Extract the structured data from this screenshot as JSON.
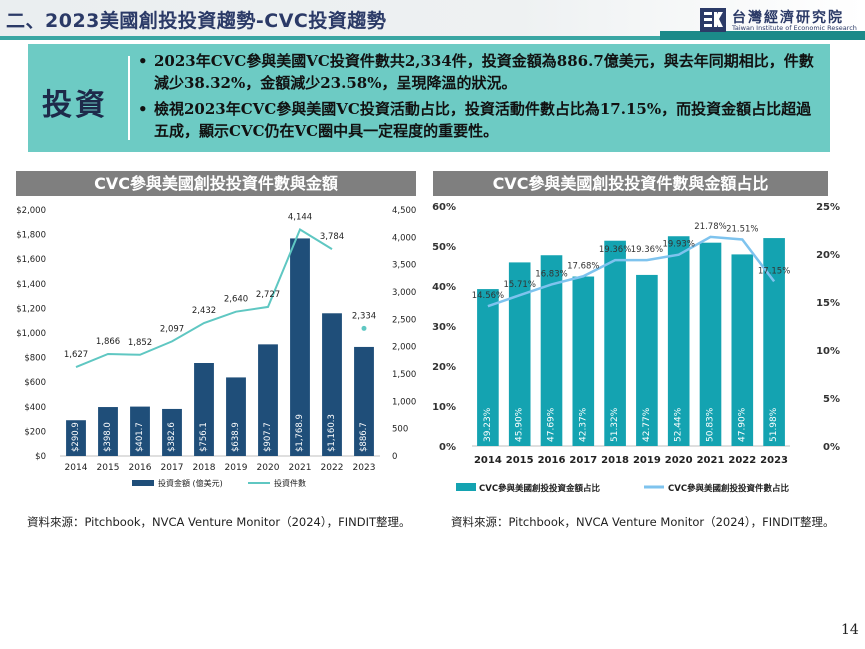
{
  "header": {
    "title": "二、2023美國創投投資趨勢-CVC投資趨勢",
    "logo_zh": "台灣經濟研究院",
    "logo_en": "Taiwan Institute of Economic Research"
  },
  "summary": {
    "label": "投資",
    "bullets": [
      "2023年CVC參與美國VC投資件數共2,334件，投資金額為886.7億美元，與去年同期相比，件數減少38.32%，金額減少23.58%，呈現降溫的狀況。",
      "檢視2023年CVC參與美國VC投資活動占比，投資活動件數占比為17.15%，而投資金額占比超過五成，顯示CVC仍在VC圈中具一定程度的重要性。"
    ]
  },
  "chart_data": [
    {
      "type": "bar",
      "title": "CVC參與美國創投投資件數與金額",
      "categories": [
        "2014",
        "2015",
        "2016",
        "2017",
        "2018",
        "2019",
        "2020",
        "2021",
        "2022",
        "2023"
      ],
      "series": [
        {
          "name": "投資金額 (億美元)",
          "type": "bar",
          "axis": "left",
          "values": [
            290.9,
            398.0,
            401.7,
            382.6,
            756.1,
            638.9,
            907.7,
            1768.9,
            1160.3,
            886.7
          ],
          "labels": [
            "$290.9",
            "$398.0",
            "$401.7",
            "$382.6",
            "$756.1",
            "$638.9",
            "$907.7",
            "$1,768.9",
            "$1,160.3",
            "$886.7"
          ]
        },
        {
          "name": "投資件數",
          "type": "line",
          "axis": "right",
          "values": [
            1627,
            1866,
            1852,
            2097,
            2432,
            2640,
            2727,
            4144,
            3784,
            2334
          ],
          "labels": [
            "1,627",
            "1,866",
            "1,852",
            "2,097",
            "2,432",
            "2,640",
            "2,727",
            "4,144",
            "3,784",
            "2,334"
          ],
          "note": "2023 value shown as a separate marker, not joined to the line"
        }
      ],
      "y_left": {
        "ylim": [
          0,
          2000
        ],
        "ticks": [
          "$0",
          "$200",
          "$400",
          "$600",
          "$800",
          "$1,000",
          "$1,200",
          "$1,400",
          "$1,600",
          "$1,800",
          "$2,000"
        ]
      },
      "y_right": {
        "ylim": [
          0,
          4500
        ],
        "ticks": [
          "0",
          "500",
          "1,000",
          "1,500",
          "2,000",
          "2,500",
          "3,000",
          "3,500",
          "4,000",
          "4,500"
        ]
      },
      "legend_position": "bottom",
      "colors": {
        "bar": "#1f4e79",
        "line": "#5fc7c2"
      }
    },
    {
      "type": "bar",
      "title": "CVC參與美國創投投資件數與金額占比",
      "categories": [
        "2014",
        "2015",
        "2016",
        "2017",
        "2018",
        "2019",
        "2020",
        "2021",
        "2022",
        "2023"
      ],
      "series": [
        {
          "name": "CVC參與美國創投投資金額占比",
          "type": "bar",
          "axis": "left",
          "values": [
            39.23,
            45.9,
            47.69,
            42.37,
            51.32,
            42.77,
            52.44,
            50.83,
            47.9,
            51.98
          ],
          "labels": [
            "39.23%",
            "45.90%",
            "47.69%",
            "42.37%",
            "51.32%",
            "42.77%",
            "52.44%",
            "50.83%",
            "47.90%",
            "51.98%"
          ]
        },
        {
          "name": "CVC參與美國創投投資件數占比",
          "type": "line",
          "axis": "right",
          "values": [
            14.56,
            15.71,
            16.83,
            17.68,
            19.36,
            19.36,
            19.93,
            21.78,
            21.51,
            17.15
          ],
          "labels": [
            "14.56%",
            "15.71%",
            "16.83%",
            "17.68%",
            "19.36%",
            "19.36%",
            "19.93%",
            "21.78%",
            "21.51%",
            "17.15%"
          ]
        }
      ],
      "y_left": {
        "ylim": [
          0,
          60
        ],
        "ticks": [
          "0%",
          "10%",
          "20%",
          "30%",
          "40%",
          "50%",
          "60%"
        ]
      },
      "y_right": {
        "ylim": [
          0,
          25
        ],
        "ticks": [
          "0%",
          "5%",
          "10%",
          "15%",
          "20%",
          "25%"
        ]
      },
      "legend_position": "bottom",
      "colors": {
        "bar": "#14a3b1",
        "line": "#7ec3ee"
      }
    }
  ],
  "sources": {
    "left": "資料來源：Pitchbook，NVCA Venture Monitor（2024），FINDIT整理。",
    "right": "資料來源：Pitchbook，NVCA Venture Monitor（2024），FINDIT整理。"
  },
  "page_number": "14"
}
